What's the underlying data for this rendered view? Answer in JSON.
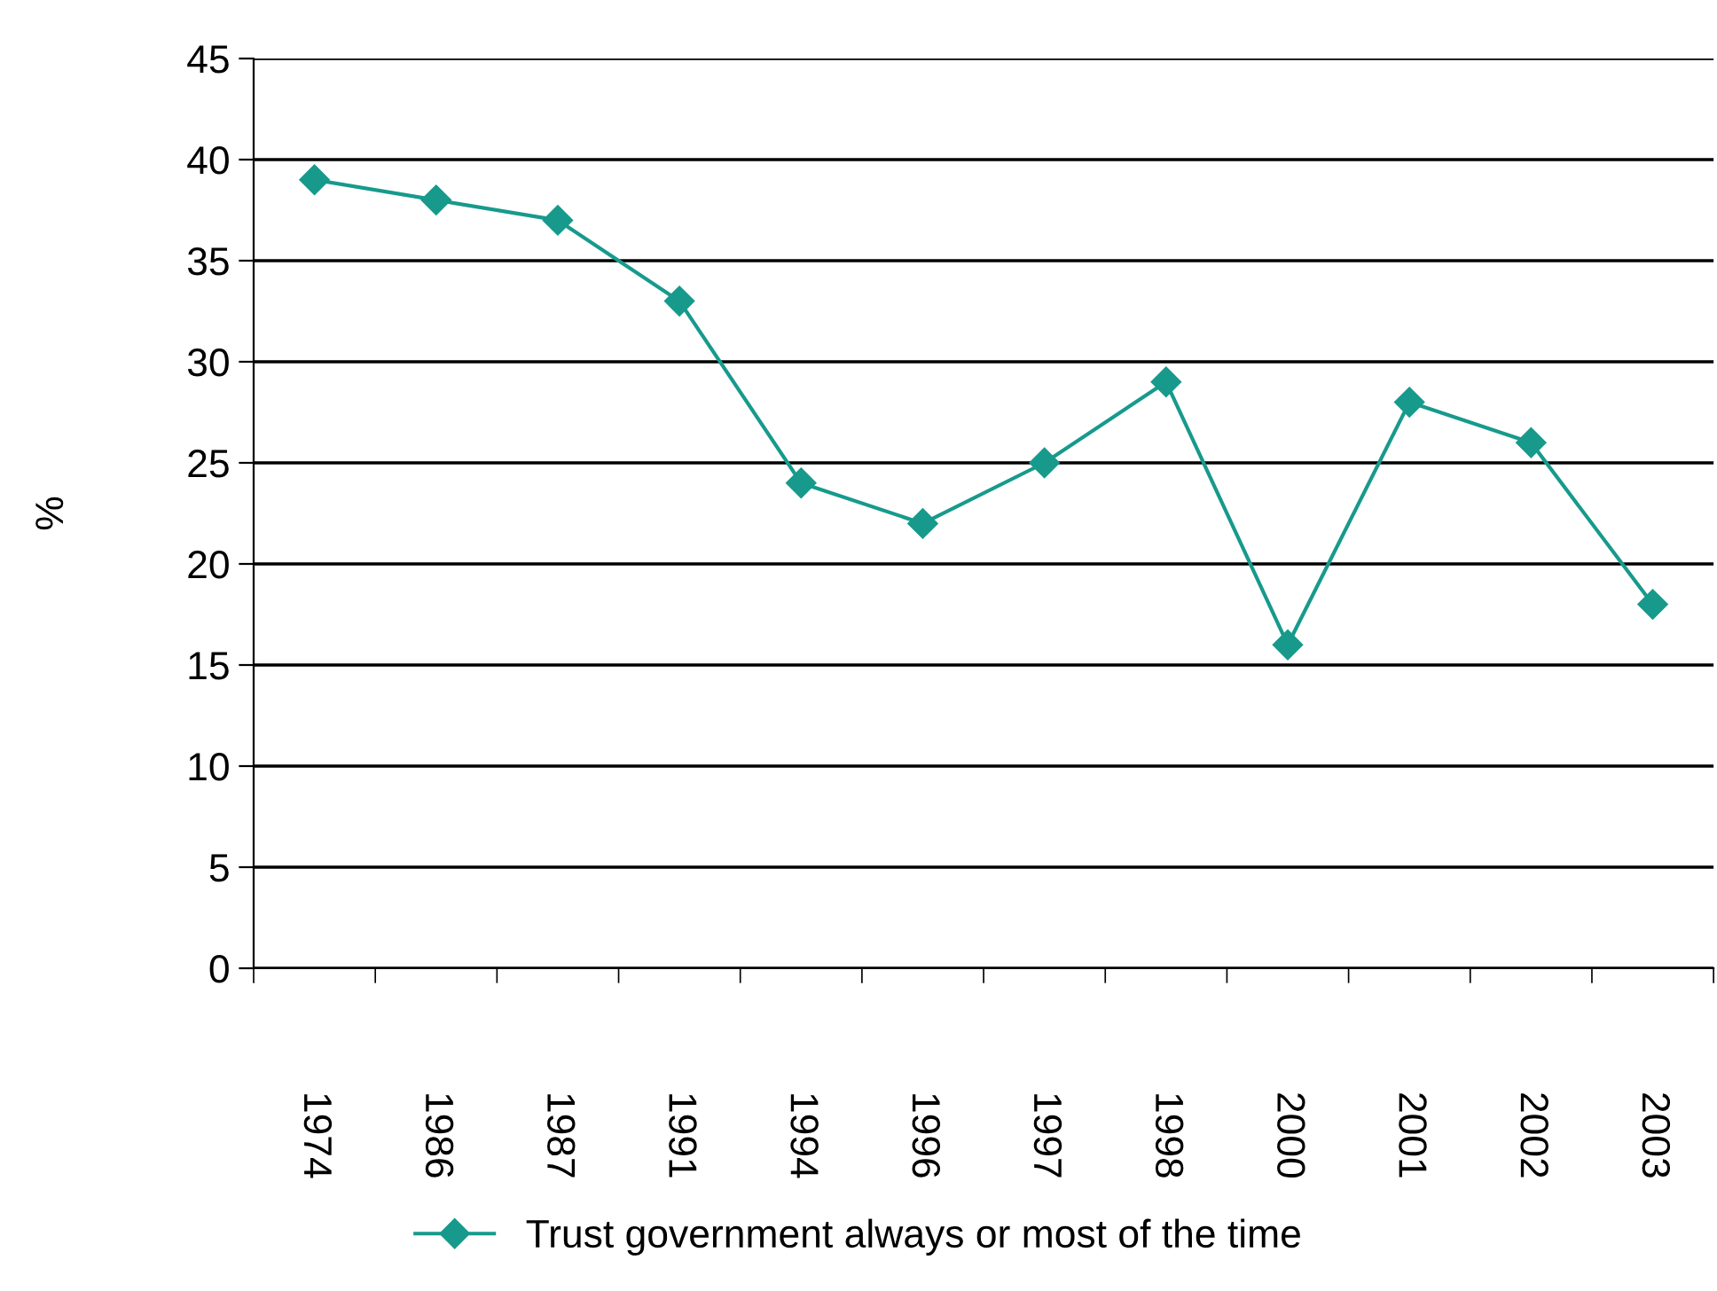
{
  "chart_data": {
    "type": "line",
    "ylabel": "%",
    "categories": [
      "1974",
      "1986",
      "1987",
      "1991",
      "1994",
      "1996",
      "1997",
      "1998",
      "2000",
      "2001",
      "2002",
      "2003"
    ],
    "series": [
      {
        "name": "Trust government always or most of the time",
        "color": "#179a8c",
        "values": [
          39,
          38,
          37,
          33,
          24,
          22,
          25,
          29,
          16,
          28,
          26,
          18
        ]
      }
    ],
    "ylim": [
      0,
      45
    ],
    "yticks": [
      0,
      5,
      10,
      15,
      20,
      25,
      30,
      35,
      40,
      45
    ],
    "grid": "y",
    "legend": "bottom",
    "marker": "diamond",
    "line_style": "solid"
  }
}
